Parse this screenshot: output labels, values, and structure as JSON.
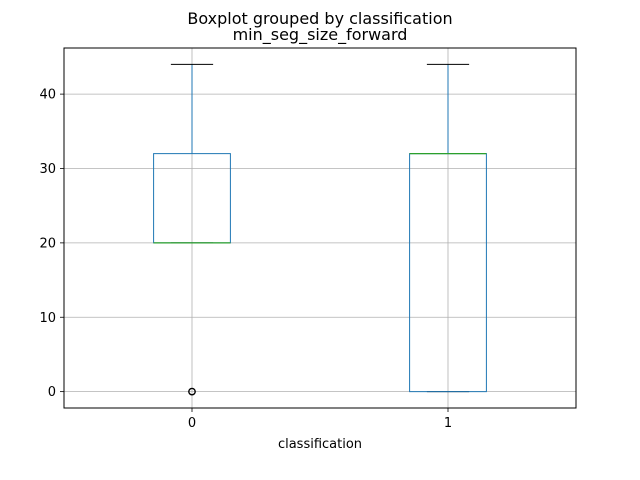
{
  "chart_data": {
    "type": "boxplot",
    "suptitle": "Boxplot grouped by classification",
    "title": "min_seg_size_forward",
    "xlabel": "classification",
    "ylabel": "",
    "categories": [
      "0",
      "1"
    ],
    "ylim": [
      -2.2,
      46.2
    ],
    "yticks": [
      0,
      10,
      20,
      30,
      40
    ],
    "ytick_labels": [
      "0",
      "10",
      "20",
      "30",
      "40"
    ],
    "grid": true,
    "boxes": [
      {
        "category": "0",
        "whisker_low": 20,
        "q1": 20,
        "median": 20,
        "q3": 32,
        "whisker_high": 44,
        "outliers": [
          0
        ]
      },
      {
        "category": "1",
        "whisker_low": 0,
        "q1": 0,
        "median": 32,
        "q3": 32,
        "whisker_high": 44,
        "outliers": []
      }
    ],
    "colors": {
      "box": "#1f77b4",
      "median": "#2ca02c",
      "whisker_cap": "#000000",
      "grid": "#b0b0b0"
    }
  }
}
